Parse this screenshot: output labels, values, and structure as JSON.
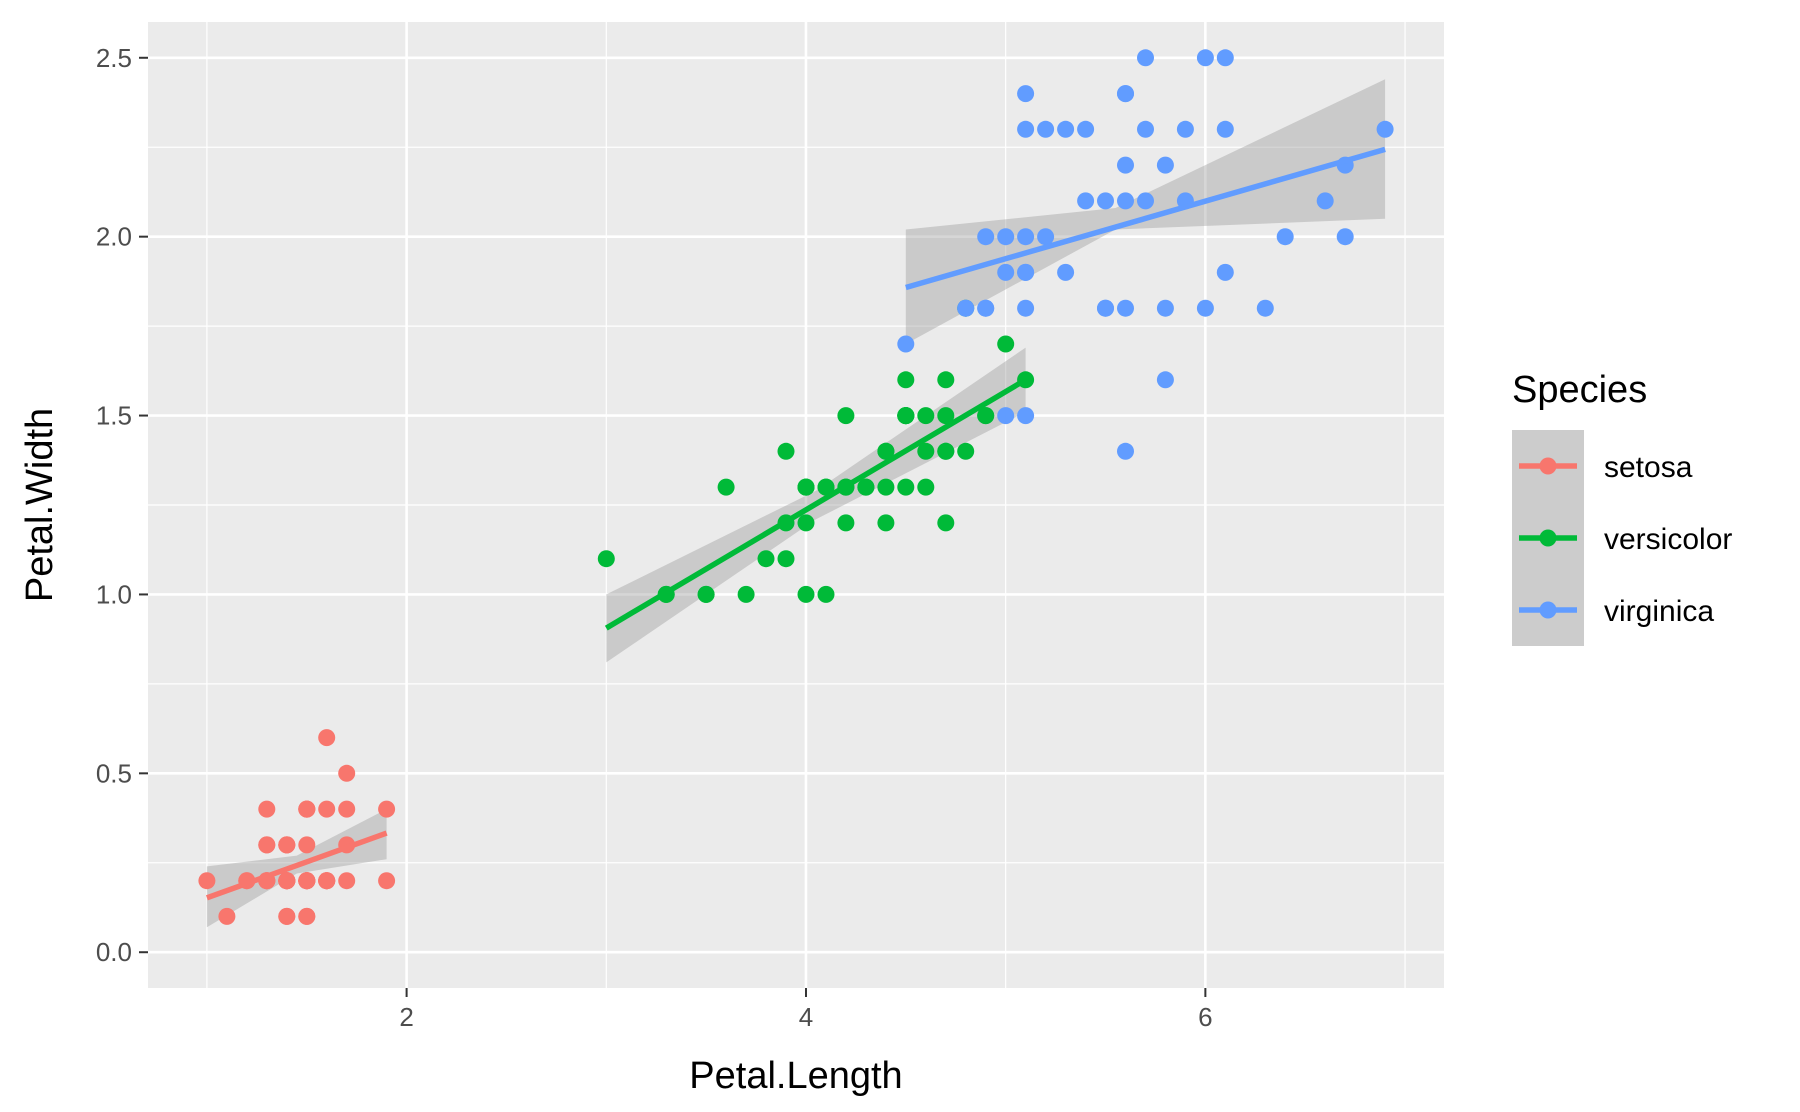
{
  "chart_data": {
    "type": "scatter",
    "xlabel": "Petal.Length",
    "ylabel": "Petal.Width",
    "xlim": [
      0.705,
      7.195
    ],
    "ylim": [
      -0.1,
      2.6
    ],
    "x_ticks": [
      2,
      4,
      6
    ],
    "y_ticks": [
      0.0,
      0.5,
      1.0,
      1.5,
      2.0,
      2.5
    ],
    "x_tick_labels": [
      "2",
      "4",
      "6"
    ],
    "y_tick_labels": [
      "0.0",
      "0.5",
      "1.0",
      "1.5",
      "2.0",
      "2.5"
    ],
    "grid": true,
    "legend": {
      "title": "Species",
      "position": "right"
    },
    "background": "#ebebeb",
    "band_color": "#999999",
    "series": [
      {
        "name": "setosa",
        "color": "#F8766D",
        "points": [
          [
            1.4,
            0.2
          ],
          [
            1.4,
            0.2
          ],
          [
            1.3,
            0.2
          ],
          [
            1.5,
            0.2
          ],
          [
            1.4,
            0.2
          ],
          [
            1.7,
            0.4
          ],
          [
            1.4,
            0.3
          ],
          [
            1.5,
            0.2
          ],
          [
            1.4,
            0.2
          ],
          [
            1.5,
            0.1
          ],
          [
            1.5,
            0.2
          ],
          [
            1.6,
            0.2
          ],
          [
            1.4,
            0.1
          ],
          [
            1.1,
            0.1
          ],
          [
            1.2,
            0.2
          ],
          [
            1.5,
            0.4
          ],
          [
            1.3,
            0.4
          ],
          [
            1.4,
            0.3
          ],
          [
            1.7,
            0.3
          ],
          [
            1.5,
            0.3
          ],
          [
            1.7,
            0.2
          ],
          [
            1.5,
            0.4
          ],
          [
            1.0,
            0.2
          ],
          [
            1.7,
            0.5
          ],
          [
            1.9,
            0.2
          ],
          [
            1.6,
            0.2
          ],
          [
            1.6,
            0.4
          ],
          [
            1.5,
            0.2
          ],
          [
            1.4,
            0.2
          ],
          [
            1.6,
            0.2
          ],
          [
            1.6,
            0.2
          ],
          [
            1.5,
            0.4
          ],
          [
            1.5,
            0.1
          ],
          [
            1.4,
            0.2
          ],
          [
            1.5,
            0.2
          ],
          [
            1.2,
            0.2
          ],
          [
            1.3,
            0.2
          ],
          [
            1.4,
            0.1
          ],
          [
            1.3,
            0.2
          ],
          [
            1.5,
            0.2
          ],
          [
            1.3,
            0.3
          ],
          [
            1.3,
            0.3
          ],
          [
            1.3,
            0.2
          ],
          [
            1.6,
            0.6
          ],
          [
            1.9,
            0.4
          ],
          [
            1.4,
            0.3
          ],
          [
            1.6,
            0.2
          ],
          [
            1.4,
            0.2
          ],
          [
            1.5,
            0.2
          ],
          [
            1.4,
            0.2
          ]
        ],
        "fit": {
          "x": [
            1.0,
            1.9
          ],
          "y": [
            0.152,
            0.333
          ]
        },
        "band": {
          "x": [
            1.0,
            1.45,
            1.9
          ],
          "lower": [
            0.07,
            0.22,
            0.26
          ],
          "upper": [
            0.24,
            0.27,
            0.4
          ]
        }
      },
      {
        "name": "versicolor",
        "color": "#00BA38",
        "points": [
          [
            4.7,
            1.4
          ],
          [
            4.5,
            1.5
          ],
          [
            4.9,
            1.5
          ],
          [
            4.0,
            1.3
          ],
          [
            4.6,
            1.5
          ],
          [
            4.5,
            1.3
          ],
          [
            4.7,
            1.6
          ],
          [
            3.3,
            1.0
          ],
          [
            4.6,
            1.3
          ],
          [
            3.9,
            1.4
          ],
          [
            3.5,
            1.0
          ],
          [
            4.2,
            1.5
          ],
          [
            4.0,
            1.0
          ],
          [
            4.7,
            1.4
          ],
          [
            3.6,
            1.3
          ],
          [
            4.4,
            1.4
          ],
          [
            4.5,
            1.5
          ],
          [
            4.1,
            1.0
          ],
          [
            4.5,
            1.5
          ],
          [
            3.9,
            1.1
          ],
          [
            4.8,
            1.8
          ],
          [
            4.0,
            1.3
          ],
          [
            4.9,
            1.5
          ],
          [
            4.7,
            1.2
          ],
          [
            4.3,
            1.3
          ],
          [
            4.4,
            1.4
          ],
          [
            4.8,
            1.4
          ],
          [
            5.0,
            1.7
          ],
          [
            4.5,
            1.5
          ],
          [
            3.5,
            1.0
          ],
          [
            3.8,
            1.1
          ],
          [
            3.7,
            1.0
          ],
          [
            3.9,
            1.2
          ],
          [
            5.1,
            1.6
          ],
          [
            4.5,
            1.5
          ],
          [
            4.5,
            1.6
          ],
          [
            4.7,
            1.5
          ],
          [
            4.4,
            1.3
          ],
          [
            4.1,
            1.3
          ],
          [
            4.0,
            1.3
          ],
          [
            4.4,
            1.2
          ],
          [
            4.6,
            1.4
          ],
          [
            4.0,
            1.2
          ],
          [
            3.3,
            1.0
          ],
          [
            4.2,
            1.3
          ],
          [
            4.2,
            1.2
          ],
          [
            4.2,
            1.3
          ],
          [
            4.3,
            1.3
          ],
          [
            3.0,
            1.1
          ],
          [
            4.1,
            1.3
          ]
        ],
        "fit": {
          "x": [
            3.0,
            5.1
          ],
          "y": [
            0.906,
            1.6
          ]
        },
        "band": {
          "x": [
            3.0,
            4.05,
            5.1
          ],
          "lower": [
            0.81,
            1.21,
            1.51
          ],
          "upper": [
            1.0,
            1.29,
            1.69
          ]
        }
      },
      {
        "name": "virginica",
        "color": "#619CFF",
        "points": [
          [
            6.0,
            2.5
          ],
          [
            5.1,
            1.9
          ],
          [
            5.9,
            2.1
          ],
          [
            5.6,
            1.8
          ],
          [
            5.8,
            2.2
          ],
          [
            6.6,
            2.1
          ],
          [
            4.5,
            1.7
          ],
          [
            6.3,
            1.8
          ],
          [
            5.8,
            1.8
          ],
          [
            6.1,
            2.5
          ],
          [
            5.1,
            2.0
          ],
          [
            5.3,
            1.9
          ],
          [
            5.5,
            2.1
          ],
          [
            5.0,
            2.0
          ],
          [
            5.1,
            2.4
          ],
          [
            5.3,
            2.3
          ],
          [
            5.5,
            1.8
          ],
          [
            6.7,
            2.2
          ],
          [
            6.9,
            2.3
          ],
          [
            5.0,
            1.5
          ],
          [
            5.7,
            2.3
          ],
          [
            4.9,
            2.0
          ],
          [
            6.7,
            2.0
          ],
          [
            4.9,
            1.8
          ],
          [
            5.7,
            2.1
          ],
          [
            6.0,
            1.8
          ],
          [
            4.8,
            1.8
          ],
          [
            4.9,
            1.8
          ],
          [
            5.6,
            2.1
          ],
          [
            5.8,
            1.6
          ],
          [
            6.1,
            1.9
          ],
          [
            6.4,
            2.0
          ],
          [
            5.6,
            2.2
          ],
          [
            5.1,
            1.5
          ],
          [
            5.6,
            1.4
          ],
          [
            6.1,
            2.3
          ],
          [
            5.6,
            2.4
          ],
          [
            5.5,
            1.8
          ],
          [
            4.8,
            1.8
          ],
          [
            5.4,
            2.1
          ],
          [
            5.6,
            2.4
          ],
          [
            5.1,
            2.3
          ],
          [
            5.1,
            1.9
          ],
          [
            5.9,
            2.3
          ],
          [
            5.7,
            2.5
          ],
          [
            5.2,
            2.3
          ],
          [
            5.0,
            1.9
          ],
          [
            5.2,
            2.0
          ],
          [
            5.4,
            2.3
          ],
          [
            5.1,
            1.8
          ]
        ],
        "fit": {
          "x": [
            4.5,
            6.9
          ],
          "y": [
            1.858,
            2.244
          ]
        },
        "band": {
          "x": [
            4.5,
            5.55,
            6.9
          ],
          "lower": [
            1.7,
            2.02,
            2.05
          ],
          "upper": [
            2.02,
            2.08,
            2.44
          ]
        }
      }
    ]
  }
}
